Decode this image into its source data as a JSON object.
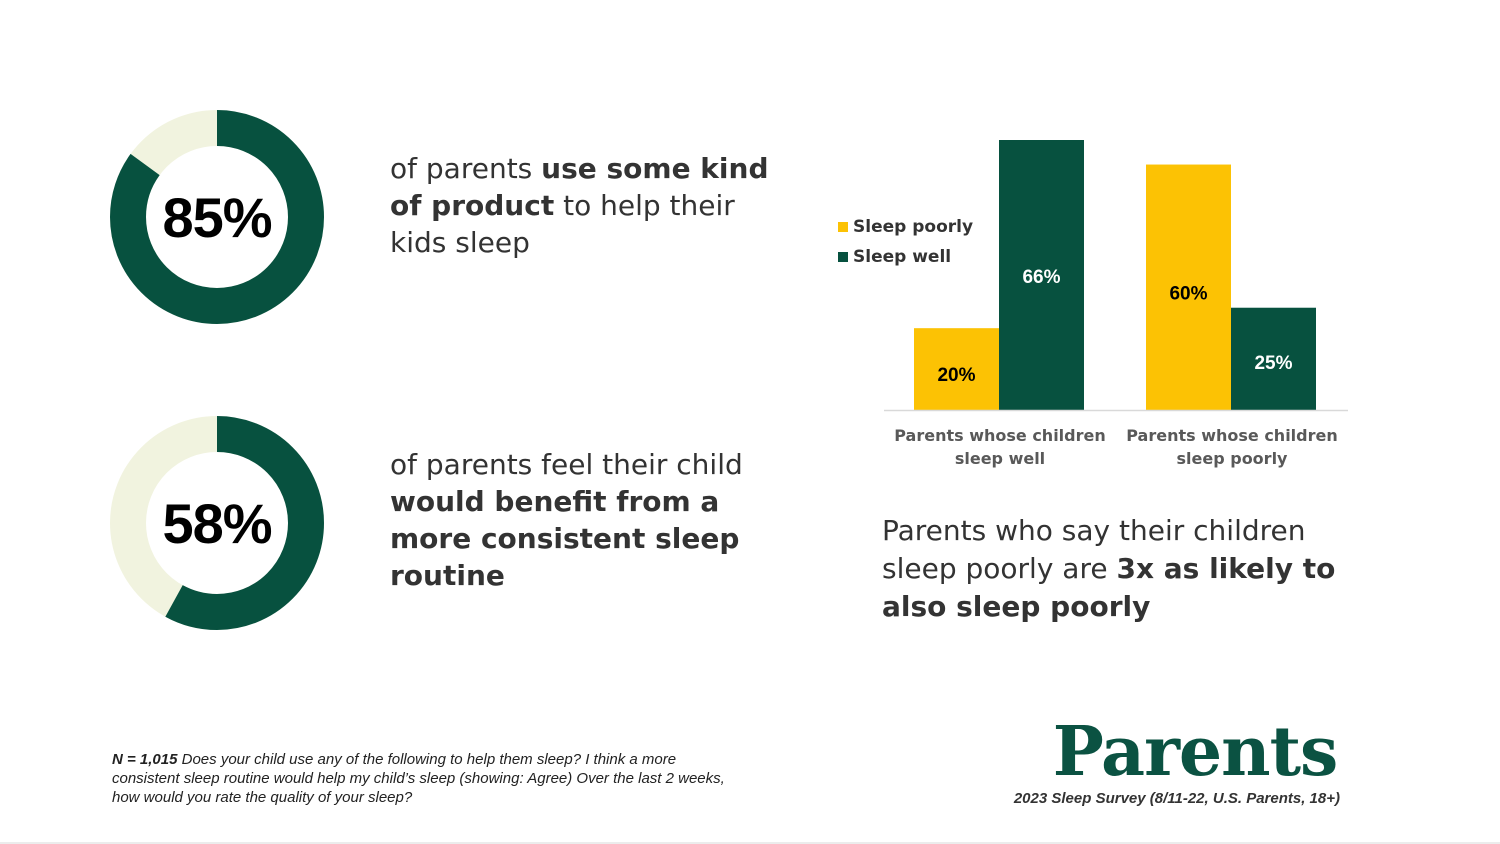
{
  "colors": {
    "dark_green": "#07513f",
    "cream": "#f1f3df",
    "yellow": "#fcc204",
    "axis": "#d9d9d9"
  },
  "stats": [
    {
      "value_pct": 85,
      "label": "85%",
      "text_parts": [
        {
          "text": "of parents ",
          "bold": false
        },
        {
          "text": "use some kind of product",
          "bold": true
        },
        {
          "text": " to help their kids sleep",
          "bold": false
        }
      ]
    },
    {
      "value_pct": 58,
      "label": "58%",
      "text_parts": [
        {
          "text": "of parents feel their child ",
          "bold": false
        },
        {
          "text": "would benefit from a more consistent sleep routine",
          "bold": true
        }
      ]
    }
  ],
  "chart_data": {
    "type": "bar",
    "categories": [
      "Parents whose children sleep well",
      "Parents whose children sleep poorly"
    ],
    "series": [
      {
        "name": "Sleep poorly",
        "values": [
          20,
          60
        ],
        "labels": [
          "20%",
          "60%"
        ],
        "color": "#fcc204"
      },
      {
        "name": "Sleep well",
        "values": [
          66,
          25
        ],
        "labels": [
          "66%",
          "25%"
        ],
        "color": "#07513f"
      }
    ],
    "ylim": [
      0,
      66
    ],
    "grid": false,
    "legend_position": "left"
  },
  "insight_parts": [
    {
      "text": "Parents who say their children sleep poorly are ",
      "bold": false
    },
    {
      "text": "3x as likely to also sleep poorly",
      "bold": true
    }
  ],
  "footnote": {
    "n_label": "N = 1,015",
    "text": " Does your child use any of the following to help them sleep?  I think a more consistent sleep routine would help my child’s sleep (showing: Agree) Over the last 2 weeks, how would you rate the quality of your sleep?"
  },
  "brand": {
    "logo": "Parents",
    "source": "2023 Sleep Survey (8/11-22, U.S. Parents, 18+)"
  }
}
